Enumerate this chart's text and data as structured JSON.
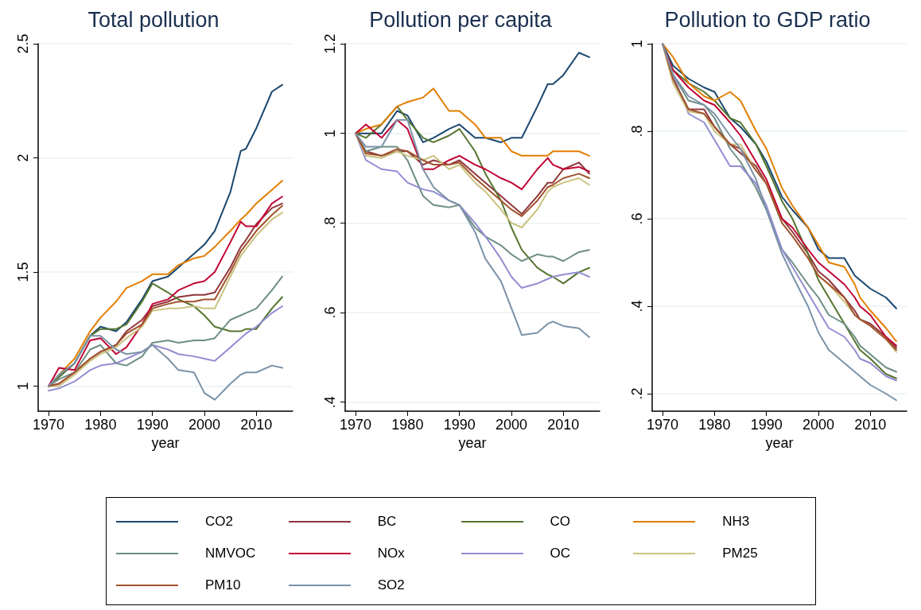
{
  "chart_data": [
    {
      "type": "line",
      "title": "Total pollution",
      "xlabel": "year",
      "x": [
        1970,
        1972,
        1975,
        1978,
        1980,
        1983,
        1985,
        1988,
        1990,
        1993,
        1995,
        1998,
        2000,
        2002,
        2005,
        2007,
        2008,
        2010,
        2013,
        2015
      ],
      "xlim": [
        1968,
        2017
      ],
      "xticks": [
        1970,
        1980,
        1990,
        2000,
        2010
      ],
      "ylim": [
        0.89,
        2.5
      ],
      "yticks": [
        1,
        1.5,
        2,
        2.5
      ],
      "grid": "y",
      "legend": "bottom",
      "marker": "none",
      "series": [
        {
          "name": "CO2",
          "color": "#1a476f",
          "values": [
            1.0,
            1.04,
            1.1,
            1.22,
            1.26,
            1.24,
            1.28,
            1.38,
            1.46,
            1.48,
            1.52,
            1.58,
            1.62,
            1.68,
            1.85,
            2.03,
            2.04,
            2.13,
            2.29,
            2.32
          ]
        },
        {
          "name": "BC",
          "color": "#90353b",
          "values": [
            1.0,
            1.01,
            1.06,
            1.12,
            1.15,
            1.18,
            1.24,
            1.29,
            1.35,
            1.37,
            1.39,
            1.4,
            1.4,
            1.41,
            1.52,
            1.61,
            1.64,
            1.71,
            1.78,
            1.8
          ]
        },
        {
          "name": "CO",
          "color": "#55752f",
          "values": [
            1.0,
            1.04,
            1.1,
            1.22,
            1.25,
            1.25,
            1.27,
            1.37,
            1.45,
            1.41,
            1.38,
            1.35,
            1.31,
            1.26,
            1.24,
            1.24,
            1.25,
            1.25,
            1.34,
            1.39
          ]
        },
        {
          "name": "NH3",
          "color": "#e37e00",
          "values": [
            1.0,
            1.05,
            1.12,
            1.24,
            1.3,
            1.37,
            1.43,
            1.46,
            1.49,
            1.49,
            1.53,
            1.56,
            1.57,
            1.61,
            1.68,
            1.73,
            1.75,
            1.8,
            1.86,
            1.9
          ]
        },
        {
          "name": "NMVOC",
          "color": "#6e8e84",
          "values": [
            1.0,
            1.03,
            1.06,
            1.16,
            1.18,
            1.1,
            1.09,
            1.13,
            1.19,
            1.2,
            1.19,
            1.2,
            1.2,
            1.21,
            1.29,
            1.31,
            1.32,
            1.34,
            1.42,
            1.48
          ]
        },
        {
          "name": "NOx",
          "color": "#c10534",
          "values": [
            1.0,
            1.08,
            1.07,
            1.2,
            1.21,
            1.14,
            1.17,
            1.27,
            1.36,
            1.38,
            1.42,
            1.45,
            1.46,
            1.5,
            1.63,
            1.72,
            1.7,
            1.7,
            1.8,
            1.83
          ]
        },
        {
          "name": "OC",
          "color": "#938dd2",
          "values": [
            0.98,
            0.99,
            1.02,
            1.07,
            1.09,
            1.1,
            1.12,
            1.15,
            1.18,
            1.16,
            1.14,
            1.13,
            1.12,
            1.11,
            1.17,
            1.21,
            1.23,
            1.26,
            1.32,
            1.35
          ]
        },
        {
          "name": "PM25",
          "color": "#cac27e",
          "values": [
            1.0,
            1.0,
            1.05,
            1.11,
            1.14,
            1.17,
            1.21,
            1.26,
            1.33,
            1.34,
            1.34,
            1.35,
            1.34,
            1.34,
            1.48,
            1.57,
            1.6,
            1.66,
            1.73,
            1.76
          ]
        },
        {
          "name": "PM10",
          "color": "#a0522d",
          "values": [
            1.0,
            1.01,
            1.06,
            1.12,
            1.15,
            1.18,
            1.23,
            1.27,
            1.34,
            1.36,
            1.37,
            1.37,
            1.38,
            1.38,
            1.5,
            1.59,
            1.62,
            1.68,
            1.75,
            1.79
          ]
        },
        {
          "name": "SO2",
          "color": "#7b92a8",
          "values": [
            1.0,
            1.05,
            1.1,
            1.22,
            1.22,
            1.16,
            1.14,
            1.15,
            1.18,
            1.12,
            1.07,
            1.06,
            0.97,
            0.94,
            1.01,
            1.05,
            1.06,
            1.06,
            1.09,
            1.08
          ]
        }
      ]
    },
    {
      "type": "line",
      "title": "Pollution per capita",
      "xlabel": "year",
      "x": [
        1970,
        1972,
        1975,
        1978,
        1980,
        1983,
        1985,
        1988,
        1990,
        1993,
        1995,
        1998,
        2000,
        2002,
        2005,
        2007,
        2008,
        2010,
        2013,
        2015
      ],
      "xlim": [
        1968,
        2017
      ],
      "xticks": [
        1970,
        1980,
        1990,
        2000,
        2010
      ],
      "ylim": [
        0.38,
        1.2
      ],
      "yticks": [
        {
          "value": 0.4,
          "label": ".4"
        },
        {
          "value": 0.6,
          "label": ".6"
        },
        {
          "value": 0.8,
          "label": ".8"
        },
        1,
        1.2
      ],
      "grid": "y",
      "marker": "none",
      "series": [
        {
          "color": "#1a476f",
          "values": [
            1.0,
            1.0,
            1.0,
            1.05,
            1.04,
            0.98,
            0.99,
            1.01,
            1.02,
            0.99,
            0.99,
            0.98,
            0.99,
            0.99,
            1.06,
            1.11,
            1.11,
            1.13,
            1.18,
            1.17
          ]
        },
        {
          "color": "#90353b",
          "values": [
            1.0,
            0.96,
            0.95,
            0.96,
            0.96,
            0.93,
            0.94,
            0.93,
            0.94,
            0.91,
            0.89,
            0.86,
            0.84,
            0.82,
            0.86,
            0.89,
            0.89,
            0.92,
            0.935,
            0.91
          ]
        },
        {
          "color": "#55752f",
          "values": [
            1.0,
            0.99,
            1.02,
            1.06,
            1.03,
            0.99,
            0.98,
            0.995,
            1.01,
            0.96,
            0.91,
            0.85,
            0.79,
            0.74,
            0.7,
            0.685,
            0.68,
            0.665,
            0.69,
            0.7
          ]
        },
        {
          "color": "#e37e00",
          "values": [
            1.0,
            1.01,
            1.02,
            1.06,
            1.07,
            1.08,
            1.1,
            1.05,
            1.05,
            1.02,
            0.99,
            0.99,
            0.96,
            0.95,
            0.95,
            0.95,
            0.96,
            0.96,
            0.96,
            0.95
          ]
        },
        {
          "color": "#6e8e84",
          "values": [
            1.0,
            0.96,
            0.97,
            0.97,
            0.94,
            0.86,
            0.84,
            0.835,
            0.84,
            0.79,
            0.77,
            0.75,
            0.73,
            0.715,
            0.73,
            0.725,
            0.725,
            0.715,
            0.735,
            0.74
          ]
        },
        {
          "color": "#c10534",
          "values": [
            1.0,
            1.02,
            0.99,
            1.03,
            1.01,
            0.92,
            0.92,
            0.94,
            0.95,
            0.93,
            0.92,
            0.9,
            0.89,
            0.875,
            0.92,
            0.945,
            0.93,
            0.92,
            0.925,
            0.915
          ]
        },
        {
          "color": "#938dd2",
          "values": [
            1.0,
            0.94,
            0.92,
            0.915,
            0.89,
            0.875,
            0.87,
            0.85,
            0.84,
            0.8,
            0.77,
            0.72,
            0.68,
            0.655,
            0.665,
            0.675,
            0.68,
            0.685,
            0.69,
            0.68
          ]
        },
        {
          "color": "#cac27e",
          "values": [
            1.0,
            0.95,
            0.945,
            0.96,
            0.95,
            0.94,
            0.95,
            0.92,
            0.93,
            0.89,
            0.87,
            0.83,
            0.8,
            0.79,
            0.83,
            0.87,
            0.88,
            0.89,
            0.9,
            0.885
          ]
        },
        {
          "color": "#a0522d",
          "values": [
            1.0,
            0.955,
            0.95,
            0.965,
            0.96,
            0.94,
            0.93,
            0.93,
            0.935,
            0.9,
            0.88,
            0.85,
            0.83,
            0.815,
            0.85,
            0.88,
            0.885,
            0.9,
            0.91,
            0.9
          ]
        },
        {
          "color": "#7b92a8",
          "values": [
            1.0,
            0.97,
            0.97,
            1.03,
            1.03,
            0.92,
            0.88,
            0.85,
            0.84,
            0.78,
            0.72,
            0.67,
            0.61,
            0.55,
            0.555,
            0.575,
            0.58,
            0.57,
            0.565,
            0.545
          ]
        }
      ]
    },
    {
      "type": "line",
      "title": "Pollution to GDP ratio",
      "xlabel": "year",
      "x": [
        1970,
        1972,
        1975,
        1978,
        1980,
        1983,
        1985,
        1988,
        1990,
        1993,
        1995,
        1998,
        2000,
        2002,
        2005,
        2007,
        2008,
        2010,
        2013,
        2015
      ],
      "xlim": [
        1968,
        2017
      ],
      "xticks": [
        1970,
        1980,
        1990,
        2000,
        2010
      ],
      "ylim": [
        0.16,
        1.0
      ],
      "yticks": [
        {
          "value": 0.2,
          "label": ".2"
        },
        {
          "value": 0.4,
          "label": ".4"
        },
        {
          "value": 0.6,
          "label": ".6"
        },
        {
          "value": 0.8,
          "label": ".8"
        },
        1
      ],
      "grid": "y",
      "marker": "none",
      "series": [
        {
          "color": "#1a476f",
          "values": [
            1.0,
            0.95,
            0.92,
            0.9,
            0.89,
            0.83,
            0.81,
            0.77,
            0.73,
            0.65,
            0.62,
            0.58,
            0.53,
            0.51,
            0.51,
            0.47,
            0.46,
            0.44,
            0.42,
            0.395
          ]
        },
        {
          "color": "#90353b",
          "values": [
            1.0,
            0.92,
            0.85,
            0.85,
            0.81,
            0.77,
            0.75,
            0.72,
            0.68,
            0.6,
            0.57,
            0.52,
            0.48,
            0.46,
            0.42,
            0.39,
            0.37,
            0.36,
            0.33,
            0.305
          ]
        },
        {
          "color": "#55752f",
          "values": [
            1.0,
            0.94,
            0.91,
            0.89,
            0.87,
            0.83,
            0.82,
            0.77,
            0.72,
            0.64,
            0.6,
            0.52,
            0.46,
            0.42,
            0.36,
            0.32,
            0.3,
            0.28,
            0.245,
            0.235
          ]
        },
        {
          "color": "#e37e00",
          "values": [
            1.0,
            0.97,
            0.91,
            0.88,
            0.87,
            0.89,
            0.87,
            0.8,
            0.76,
            0.67,
            0.63,
            0.58,
            0.54,
            0.5,
            0.49,
            0.45,
            0.42,
            0.39,
            0.35,
            0.32
          ]
        },
        {
          "color": "#6e8e84",
          "values": [
            1.0,
            0.93,
            0.87,
            0.86,
            0.83,
            0.76,
            0.73,
            0.67,
            0.62,
            0.53,
            0.5,
            0.45,
            0.42,
            0.38,
            0.36,
            0.33,
            0.31,
            0.29,
            0.26,
            0.25
          ]
        },
        {
          "color": "#c10534",
          "values": [
            1.0,
            0.94,
            0.9,
            0.87,
            0.86,
            0.82,
            0.79,
            0.73,
            0.69,
            0.6,
            0.58,
            0.53,
            0.5,
            0.48,
            0.45,
            0.42,
            0.4,
            0.38,
            0.33,
            0.31
          ]
        },
        {
          "color": "#938dd2",
          "values": [
            1.0,
            0.93,
            0.84,
            0.82,
            0.78,
            0.72,
            0.72,
            0.68,
            0.63,
            0.53,
            0.49,
            0.43,
            0.39,
            0.35,
            0.33,
            0.3,
            0.28,
            0.27,
            0.24,
            0.23
          ]
        },
        {
          "color": "#cac27e",
          "values": [
            1.0,
            0.91,
            0.845,
            0.84,
            0.8,
            0.77,
            0.77,
            0.71,
            0.68,
            0.59,
            0.56,
            0.51,
            0.47,
            0.45,
            0.41,
            0.38,
            0.37,
            0.355,
            0.325,
            0.295
          ]
        },
        {
          "color": "#a0522d",
          "values": [
            1.0,
            0.92,
            0.85,
            0.84,
            0.81,
            0.77,
            0.76,
            0.71,
            0.68,
            0.59,
            0.56,
            0.51,
            0.47,
            0.45,
            0.42,
            0.38,
            0.37,
            0.355,
            0.325,
            0.3
          ]
        },
        {
          "color": "#7b92a8",
          "values": [
            1.0,
            0.93,
            0.88,
            0.86,
            0.84,
            0.79,
            0.76,
            0.69,
            0.62,
            0.52,
            0.47,
            0.4,
            0.34,
            0.3,
            0.27,
            0.25,
            0.24,
            0.22,
            0.2,
            0.185
          ]
        }
      ]
    }
  ]
}
